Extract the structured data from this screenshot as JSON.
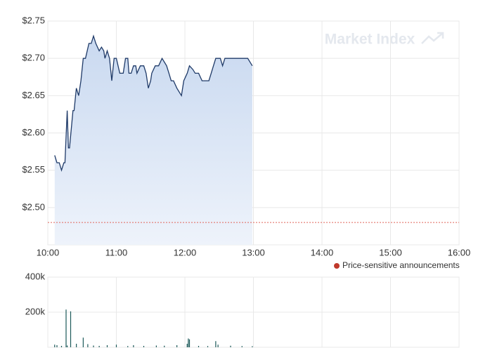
{
  "chart_data": [
    {
      "type": "line",
      "watermark": "Market Index",
      "legend": "Price-sensitive announcements",
      "legend_color": "#c0392b",
      "x": [
        "10:06",
        "10:08",
        "10:10",
        "10:12",
        "10:14",
        "10:15",
        "10:17",
        "10:18",
        "10:19",
        "10:22",
        "10:23",
        "10:25",
        "10:27",
        "10:29",
        "10:31",
        "10:33",
        "10:36",
        "10:38",
        "10:40",
        "10:42",
        "10:45",
        "10:47",
        "10:49",
        "10:50",
        "10:52",
        "10:54",
        "10:56",
        "10:58",
        "11:00",
        "11:03",
        "11:06",
        "11:08",
        "11:10",
        "11:11",
        "11:13",
        "11:15",
        "11:17",
        "11:18",
        "11:21",
        "11:24",
        "11:26",
        "11:28",
        "11:30",
        "11:31",
        "11:34",
        "11:37",
        "11:40",
        "11:42",
        "11:44",
        "11:46",
        "11:48",
        "11:50",
        "11:53",
        "11:57",
        "11:59",
        "12:02",
        "12:04",
        "12:07",
        "12:09",
        "12:12",
        "12:15",
        "12:18",
        "12:21",
        "12:23",
        "12:25",
        "12:27",
        "12:31",
        "12:33",
        "12:35",
        "12:47",
        "12:55",
        "12:59"
      ],
      "series": [
        {
          "name": "Price",
          "color": "#1f3a68",
          "values": [
            2.57,
            2.56,
            2.56,
            2.55,
            2.56,
            2.56,
            2.63,
            2.58,
            2.58,
            2.63,
            2.63,
            2.66,
            2.65,
            2.67,
            2.7,
            2.7,
            2.72,
            2.72,
            2.73,
            2.72,
            2.71,
            2.715,
            2.71,
            2.7,
            2.71,
            2.7,
            2.67,
            2.7,
            2.7,
            2.68,
            2.68,
            2.7,
            2.7,
            2.68,
            2.68,
            2.69,
            2.69,
            2.68,
            2.69,
            2.69,
            2.68,
            2.66,
            2.67,
            2.68,
            2.69,
            2.69,
            2.7,
            2.695,
            2.69,
            2.68,
            2.67,
            2.67,
            2.66,
            2.65,
            2.67,
            2.68,
            2.69,
            2.685,
            2.68,
            2.68,
            2.67,
            2.67,
            2.67,
            2.68,
            2.69,
            2.7,
            2.7,
            2.69,
            2.7,
            2.7,
            2.7,
            2.69
          ]
        }
      ],
      "reference_line": 2.48,
      "xlim": [
        "10:00",
        "16:00"
      ],
      "xticks": [
        "10:00",
        "11:00",
        "12:00",
        "13:00",
        "14:00",
        "15:00",
        "16:00"
      ],
      "ylim": [
        2.45,
        2.75
      ],
      "yticks": [
        {
          "value": 2.5,
          "label": "$2.50"
        },
        {
          "value": 2.55,
          "label": "$2.55"
        },
        {
          "value": 2.6,
          "label": "$2.60"
        },
        {
          "value": 2.65,
          "label": "$2.65"
        },
        {
          "value": 2.7,
          "label": "$2.70"
        },
        {
          "value": 2.75,
          "label": "$2.75"
        }
      ],
      "grid": true
    },
    {
      "type": "bar",
      "x": [
        "10:06",
        "10:08",
        "10:12",
        "10:16",
        "10:17",
        "10:20",
        "10:25",
        "10:31",
        "10:35",
        "10:40",
        "10:45",
        "10:52",
        "11:00",
        "11:10",
        "11:15",
        "11:24",
        "11:35",
        "11:42",
        "11:53",
        "12:02",
        "12:03",
        "12:04",
        "12:12",
        "12:20",
        "12:27",
        "12:29",
        "12:40",
        "12:50",
        "12:59"
      ],
      "values": [
        15000,
        12000,
        8000,
        215000,
        10000,
        205000,
        20000,
        55000,
        18000,
        10000,
        8000,
        12000,
        15000,
        7000,
        12000,
        8000,
        10000,
        9000,
        12000,
        20000,
        50000,
        45000,
        8000,
        7000,
        35000,
        15000,
        9000,
        7000,
        6000
      ],
      "color": "#1d5a5a",
      "xlim": [
        "10:00",
        "16:00"
      ],
      "xticks": [
        "10:00",
        "11:00",
        "12:00",
        "13:00",
        "14:00",
        "15:00",
        "16:00"
      ],
      "ylim": [
        0,
        400000
      ],
      "yticks": [
        {
          "value": 200000,
          "label": "200k"
        },
        {
          "value": 400000,
          "label": "400k"
        }
      ],
      "grid": true
    }
  ]
}
